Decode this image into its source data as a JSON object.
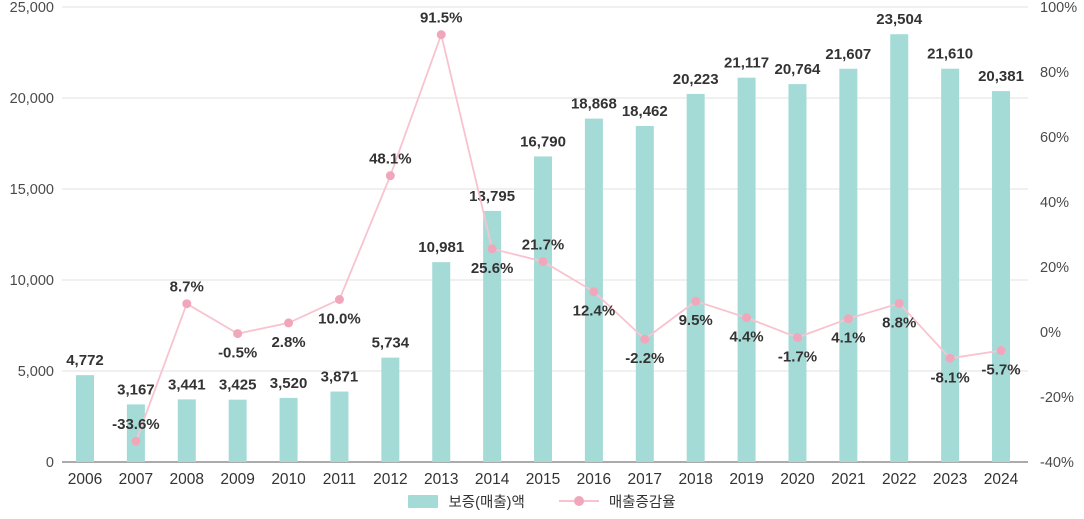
{
  "chart_data": {
    "type": "combo",
    "title": "",
    "categories": [
      "2006",
      "2007",
      "2008",
      "2009",
      "2010",
      "2011",
      "2012",
      "2013",
      "2014",
      "2015",
      "2016",
      "2017",
      "2018",
      "2019",
      "2020",
      "2021",
      "2022",
      "2023",
      "2024"
    ],
    "series": [
      {
        "name": "보증(매출)액",
        "type": "bar",
        "color": "#a5dbd7",
        "values": [
          4772,
          3167,
          3441,
          3425,
          3520,
          3871,
          5734,
          10981,
          13795,
          16790,
          18868,
          18462,
          20223,
          21117,
          20764,
          21607,
          23504,
          21610,
          20381
        ],
        "labels": [
          "4,772",
          "3,167",
          "3,441",
          "3,425",
          "3,520",
          "3,871",
          "5,734",
          "10,981",
          "13,795",
          "16,790",
          "18,868",
          "18,462",
          "20,223",
          "21,117",
          "20,764",
          "21,607",
          "23,504",
          "21,610",
          "20,381"
        ]
      },
      {
        "name": "매출증감율",
        "type": "line",
        "color": "#f8c3cf",
        "marker_color": "#f1a7bb",
        "values": [
          null,
          -33.6,
          8.7,
          -0.5,
          2.8,
          10.0,
          48.1,
          91.5,
          25.6,
          21.7,
          12.4,
          -2.2,
          9.5,
          4.4,
          -1.7,
          4.1,
          8.8,
          -8.1,
          -5.7
        ],
        "labels": [
          null,
          "-33.6%",
          "8.7%",
          "-0.5%",
          "2.8%",
          "10.0%",
          "48.1%",
          "91.5%",
          "25.6%",
          "21.7%",
          "12.4%",
          "-2.2%",
          "9.5%",
          "4.4%",
          "-1.7%",
          "4.1%",
          "8.8%",
          "-8.1%",
          "-5.7%"
        ],
        "label_side": [
          null,
          "above",
          "above",
          "below",
          "below",
          "below",
          "above",
          "above",
          "below",
          "above",
          "below",
          "below",
          "below",
          "below",
          "below",
          "below",
          "below",
          "below",
          "below"
        ]
      }
    ],
    "left_axis": {
      "min": 0,
      "max": 25000,
      "tick_labels": [
        "25,000",
        "20,000",
        "15,000",
        "10,000",
        "5,000",
        "0"
      ]
    },
    "right_axis": {
      "min": -40,
      "max": 100,
      "tick_labels": [
        "100%",
        "80%",
        "60%",
        "40%",
        "20%",
        "0%",
        "-20%",
        "-40%"
      ]
    },
    "grid": true,
    "legend_position": "bottom",
    "colors": {
      "grid": "#e2e2e2",
      "axis_line": "#ababab",
      "label_text": "#333333",
      "axis_text": "#4a4a4a"
    }
  }
}
